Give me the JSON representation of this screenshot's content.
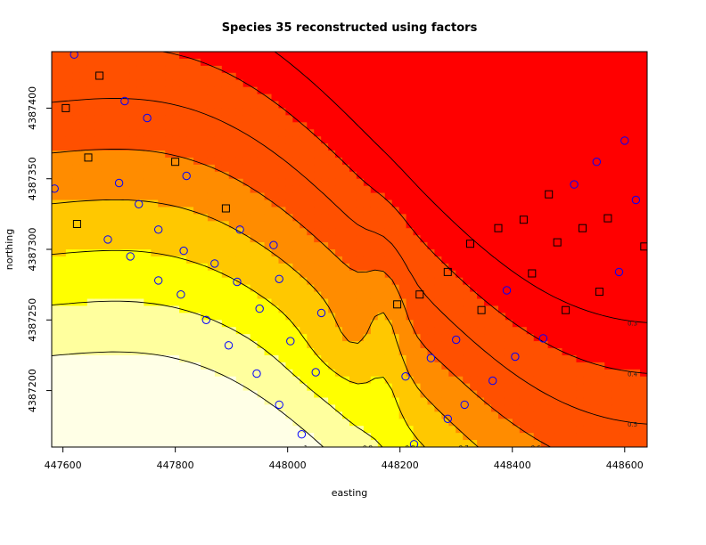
{
  "chart_data": {
    "type": "heatmap",
    "title": "Species 35 reconstructed using factors",
    "xlabel": "easting",
    "ylabel": "northing",
    "xlim": [
      447580,
      448640
    ],
    "ylim": [
      4387160,
      4387440
    ],
    "x_ticks": [
      447600,
      447800,
      448000,
      448200,
      448400,
      448600
    ],
    "y_ticks": [
      4387200,
      4387250,
      4387300,
      4387350,
      4387400
    ],
    "colormap": [
      "#ff0000",
      "#ff5000",
      "#ff8c00",
      "#ffc800",
      "#ffff00",
      "#ffff9e",
      "#ffffe6"
    ],
    "contour_levels": [
      0.3,
      0.4,
      0.5,
      0.6,
      0.7,
      0.8,
      0.9,
      1
    ],
    "contour_labels": [
      "0.3",
      "0.4",
      "0.5",
      "0.6",
      "0.7",
      "0.8",
      "0.9",
      "1"
    ],
    "series": [
      {
        "marker": "square",
        "color": "#000000",
        "points": [
          {
            "x": 447665,
            "y": 4387423
          },
          {
            "x": 447605,
            "y": 4387400
          },
          {
            "x": 447645,
            "y": 4387365
          },
          {
            "x": 447800,
            "y": 4387362
          },
          {
            "x": 447625,
            "y": 4387318
          },
          {
            "x": 447890,
            "y": 4387329
          },
          {
            "x": 448195,
            "y": 4387261
          },
          {
            "x": 448235,
            "y": 4387268
          },
          {
            "x": 448285,
            "y": 4387284
          },
          {
            "x": 448325,
            "y": 4387304
          },
          {
            "x": 448345,
            "y": 4387257
          },
          {
            "x": 448375,
            "y": 4387315
          },
          {
            "x": 448420,
            "y": 4387321
          },
          {
            "x": 448435,
            "y": 4387283
          },
          {
            "x": 448465,
            "y": 4387339
          },
          {
            "x": 448480,
            "y": 4387305
          },
          {
            "x": 448495,
            "y": 4387257
          },
          {
            "x": 448525,
            "y": 4387315
          },
          {
            "x": 448555,
            "y": 4387270
          },
          {
            "x": 448570,
            "y": 4387322
          },
          {
            "x": 448635,
            "y": 4387302
          }
        ]
      },
      {
        "marker": "circle",
        "color": "#0000ff",
        "points": [
          {
            "x": 447620,
            "y": 4387438
          },
          {
            "x": 447710,
            "y": 4387405
          },
          {
            "x": 447750,
            "y": 4387393
          },
          {
            "x": 447585,
            "y": 4387343
          },
          {
            "x": 447700,
            "y": 4387347
          },
          {
            "x": 447820,
            "y": 4387352
          },
          {
            "x": 447735,
            "y": 4387332
          },
          {
            "x": 447680,
            "y": 4387307
          },
          {
            "x": 447770,
            "y": 4387314
          },
          {
            "x": 447720,
            "y": 4387295
          },
          {
            "x": 447815,
            "y": 4387299
          },
          {
            "x": 447915,
            "y": 4387314
          },
          {
            "x": 447770,
            "y": 4387278
          },
          {
            "x": 447870,
            "y": 4387290
          },
          {
            "x": 447975,
            "y": 4387303
          },
          {
            "x": 447810,
            "y": 4387268
          },
          {
            "x": 447910,
            "y": 4387277
          },
          {
            "x": 447985,
            "y": 4387279
          },
          {
            "x": 447855,
            "y": 4387250
          },
          {
            "x": 447950,
            "y": 4387258
          },
          {
            "x": 448060,
            "y": 4387255
          },
          {
            "x": 447895,
            "y": 4387232
          },
          {
            "x": 448005,
            "y": 4387235
          },
          {
            "x": 447945,
            "y": 4387212
          },
          {
            "x": 448050,
            "y": 4387213
          },
          {
            "x": 447985,
            "y": 4387190
          },
          {
            "x": 448025,
            "y": 4387169
          },
          {
            "x": 448210,
            "y": 4387210
          },
          {
            "x": 448255,
            "y": 4387223
          },
          {
            "x": 448300,
            "y": 4387236
          },
          {
            "x": 448225,
            "y": 4387162
          },
          {
            "x": 448285,
            "y": 4387180
          },
          {
            "x": 448315,
            "y": 4387190
          },
          {
            "x": 448365,
            "y": 4387207
          },
          {
            "x": 448405,
            "y": 4387224
          },
          {
            "x": 448390,
            "y": 4387271
          },
          {
            "x": 448455,
            "y": 4387237
          },
          {
            "x": 448510,
            "y": 4387346
          },
          {
            "x": 448550,
            "y": 4387362
          },
          {
            "x": 448590,
            "y": 4387284
          },
          {
            "x": 448600,
            "y": 4387377
          },
          {
            "x": 448620,
            "y": 4387335
          }
        ]
      }
    ],
    "grid": false
  }
}
